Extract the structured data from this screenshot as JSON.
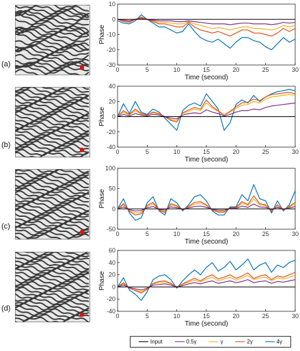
{
  "colors": {
    "input": "#000000",
    "g05": "#7e2f8e",
    "g1": "#edb120",
    "g2": "#d95319",
    "g4": "#0072bd",
    "pattern_dark": "#3a3a3a",
    "pattern_light": "#e8e8e8",
    "marker": "#e01010"
  },
  "panels": [
    {
      "label": "(a)"
    },
    {
      "label": "(b)"
    },
    {
      "label": "(c)"
    },
    {
      "label": "(d)"
    }
  ],
  "legend": {
    "items": [
      {
        "label": "Input",
        "series": "input"
      },
      {
        "label": "0.5γ",
        "series": "g05"
      },
      {
        "label": "γ",
        "series": "g1"
      },
      {
        "label": "2γ",
        "series": "g2"
      },
      {
        "label": "4γ",
        "series": "g4"
      }
    ]
  },
  "chart_data": [
    {
      "type": "line",
      "xlabel": "Time (second)",
      "ylabel": "Phase",
      "xlim": [
        0,
        30
      ],
      "ylim": [
        -30,
        10
      ],
      "xticks": [
        0,
        5,
        10,
        15,
        20,
        25,
        30
      ],
      "yticks": [
        -30,
        -20,
        -10,
        0,
        10
      ],
      "x": [
        0,
        1,
        2,
        3,
        4,
        5,
        6,
        7,
        8,
        9,
        10,
        11,
        12,
        13,
        14,
        15,
        16,
        17,
        18,
        19,
        20,
        21,
        22,
        23,
        24,
        25,
        26,
        27,
        28,
        29,
        30
      ],
      "series": [
        {
          "name": "Input",
          "key": "input",
          "values": [
            0,
            0,
            0,
            0,
            0,
            0,
            0,
            0,
            0,
            0,
            0,
            0,
            0,
            0,
            0,
            0,
            0,
            0,
            0,
            0,
            0,
            0,
            0,
            0,
            0,
            0,
            0,
            0,
            0,
            0,
            0
          ]
        },
        {
          "name": "0.5γ",
          "key": "g05",
          "values": [
            0,
            -0.5,
            -1,
            0,
            0.5,
            0,
            -0.5,
            -1,
            -1,
            -1,
            -1.5,
            -1.5,
            -1,
            -1.5,
            -2,
            -2.5,
            -3,
            -3,
            -3,
            -3.5,
            -3,
            -2.5,
            -2.5,
            -3,
            -3,
            -3,
            -3.5,
            -3,
            -2,
            -2.5,
            -2
          ]
        },
        {
          "name": "γ",
          "key": "g1",
          "values": [
            0,
            -1,
            -1.5,
            0,
            1,
            0,
            -1,
            -2,
            -2,
            -2.5,
            -3,
            -3,
            -1.5,
            -3,
            -4,
            -5,
            -6,
            -5.5,
            -6,
            -7,
            -6,
            -5,
            -5,
            -6,
            -6,
            -6.5,
            -7,
            -6,
            -4,
            -5,
            -4
          ]
        },
        {
          "name": "2γ",
          "key": "g2",
          "values": [
            0,
            -1.5,
            -2,
            0,
            1.5,
            0,
            -1.5,
            -3,
            -3,
            -4,
            -5,
            -5,
            -2,
            -5,
            -7,
            -8,
            -9,
            -8,
            -9.5,
            -11,
            -9,
            -7,
            -7,
            -9,
            -9,
            -10,
            -11,
            -9,
            -6,
            -8,
            -6
          ]
        },
        {
          "name": "4γ",
          "key": "g4",
          "values": [
            -1,
            -2.5,
            -3,
            -1,
            3,
            0,
            -2.5,
            -5,
            -5,
            -7,
            -9,
            -8,
            -3,
            -8,
            -12,
            -14,
            -15,
            -13,
            -16,
            -19,
            -15,
            -12,
            -12,
            -14,
            -15,
            -18,
            -20,
            -16,
            -12,
            -15,
            -13
          ]
        }
      ]
    },
    {
      "type": "line",
      "xlabel": "Time (second)",
      "ylabel": "Phase",
      "xlim": [
        0,
        30
      ],
      "ylim": [
        -40,
        40
      ],
      "xticks": [
        0,
        5,
        10,
        15,
        20,
        25,
        30
      ],
      "yticks": [
        -40,
        -20,
        0,
        20,
        40
      ],
      "x": [
        0,
        1,
        2,
        3,
        4,
        5,
        6,
        7,
        8,
        9,
        10,
        11,
        12,
        13,
        14,
        15,
        16,
        17,
        18,
        19,
        20,
        21,
        22,
        23,
        24,
        25,
        26,
        27,
        28,
        29,
        30
      ],
      "series": [
        {
          "name": "Input",
          "key": "input",
          "values": [
            0,
            0,
            0,
            0,
            0,
            0,
            0,
            0,
            0,
            0,
            0,
            0,
            0,
            0,
            0,
            0,
            0,
            0,
            0,
            0,
            0,
            0,
            0,
            0,
            0,
            0,
            0,
            0,
            0,
            0,
            0
          ]
        },
        {
          "name": "0.5γ",
          "key": "g05",
          "values": [
            0,
            3,
            1,
            4,
            2,
            1,
            3,
            2,
            0,
            -2,
            -3,
            2,
            4,
            5,
            4,
            9,
            6,
            4,
            1,
            3,
            6,
            8,
            8,
            10,
            9,
            12,
            14,
            15,
            16,
            17,
            18
          ]
        },
        {
          "name": "γ",
          "key": "g1",
          "values": [
            0,
            6,
            2,
            8,
            3,
            2,
            5,
            3,
            0,
            -4,
            -5,
            4,
            7,
            10,
            8,
            18,
            11,
            7,
            2,
            6,
            11,
            15,
            16,
            20,
            18,
            23,
            26,
            27,
            28,
            29,
            28
          ]
        },
        {
          "name": "2γ",
          "key": "g2",
          "values": [
            0,
            8,
            3,
            10,
            4,
            2,
            6,
            4,
            0,
            -5,
            -7,
            5,
            9,
            12,
            10,
            22,
            13,
            8,
            2,
            7,
            13,
            18,
            19,
            23,
            21,
            26,
            29,
            30,
            31,
            32,
            30
          ]
        },
        {
          "name": "4γ",
          "key": "g4",
          "values": [
            0,
            17,
            4,
            20,
            6,
            3,
            10,
            6,
            -2,
            -10,
            -18,
            8,
            15,
            18,
            14,
            30,
            20,
            10,
            -18,
            -8,
            16,
            22,
            18,
            28,
            20,
            26,
            30,
            33,
            34,
            36,
            34
          ]
        }
      ]
    },
    {
      "type": "line",
      "xlabel": "Time (second)",
      "ylabel": "Phase",
      "xlim": [
        0,
        30
      ],
      "ylim": [
        -50,
        100
      ],
      "xticks": [
        0,
        5,
        10,
        15,
        20,
        25,
        30
      ],
      "yticks": [
        -50,
        0,
        50,
        100
      ],
      "x": [
        0,
        1,
        2,
        3,
        4,
        5,
        6,
        7,
        8,
        9,
        10,
        11,
        12,
        13,
        14,
        15,
        16,
        17,
        18,
        19,
        20,
        21,
        22,
        23,
        24,
        25,
        26,
        27,
        28,
        29,
        30
      ],
      "series": [
        {
          "name": "Input",
          "key": "input",
          "values": [
            0,
            0,
            0,
            0,
            0,
            0,
            0,
            0,
            0,
            0,
            0,
            0,
            0,
            0,
            0,
            0,
            0,
            0,
            0,
            0,
            0,
            0,
            0,
            0,
            0,
            0,
            0,
            0,
            0,
            0,
            0
          ]
        },
        {
          "name": "0.5γ",
          "key": "g05",
          "values": [
            0,
            5,
            -2,
            -5,
            -4,
            3,
            6,
            -1,
            -3,
            5,
            3,
            -1,
            2,
            6,
            7,
            4,
            -1,
            -3,
            -3,
            1,
            1,
            7,
            4,
            12,
            5,
            4,
            -2,
            4,
            -1,
            2,
            6
          ]
        },
        {
          "name": "γ",
          "key": "g1",
          "values": [
            0,
            10,
            -4,
            -10,
            -8,
            6,
            12,
            -2,
            -6,
            10,
            6,
            -2,
            4,
            12,
            14,
            8,
            -2,
            -6,
            -6,
            2,
            2,
            14,
            8,
            24,
            10,
            8,
            -4,
            8,
            -2,
            4,
            12
          ]
        },
        {
          "name": "2γ",
          "key": "g2",
          "values": [
            0,
            13,
            -6,
            -15,
            -12,
            9,
            16,
            -3,
            -9,
            13,
            8,
            -3,
            6,
            16,
            18,
            10,
            -3,
            -8,
            -8,
            3,
            3,
            18,
            11,
            32,
            13,
            10,
            -6,
            10,
            -3,
            6,
            16
          ]
        },
        {
          "name": "4γ",
          "key": "g4",
          "values": [
            0,
            25,
            -10,
            -28,
            -22,
            15,
            30,
            -5,
            -15,
            25,
            15,
            -5,
            10,
            30,
            35,
            20,
            -5,
            -15,
            -15,
            5,
            5,
            35,
            20,
            60,
            25,
            20,
            -10,
            20,
            -5,
            10,
            45
          ]
        }
      ]
    },
    {
      "type": "line",
      "xlabel": "Time (second)",
      "ylabel": "Phase",
      "xlim": [
        0,
        30
      ],
      "ylim": [
        -40,
        60
      ],
      "xticks": [
        0,
        5,
        10,
        15,
        20,
        25,
        30
      ],
      "yticks": [
        -40,
        -20,
        0,
        20,
        40,
        60
      ],
      "x": [
        0,
        1,
        2,
        3,
        4,
        5,
        6,
        7,
        8,
        9,
        10,
        11,
        12,
        13,
        14,
        15,
        16,
        17,
        18,
        19,
        20,
        21,
        22,
        23,
        24,
        25,
        26,
        27,
        28,
        29,
        30
      ],
      "series": [
        {
          "name": "Input",
          "key": "input",
          "values": [
            0,
            0,
            0,
            0,
            0,
            0,
            0,
            0,
            0,
            0,
            0,
            0,
            0,
            0,
            0,
            0,
            0,
            0,
            0,
            0,
            0,
            0,
            0,
            0,
            0,
            0,
            0,
            0,
            0,
            0,
            0
          ]
        },
        {
          "name": "0.5γ",
          "key": "g05",
          "values": [
            0,
            3,
            -1,
            -3,
            -5,
            -2,
            3,
            4,
            5,
            3,
            0,
            2,
            5,
            7,
            5,
            8,
            10,
            6,
            8,
            10,
            7,
            9,
            12,
            7,
            9,
            10,
            6,
            9,
            8,
            10,
            12
          ]
        },
        {
          "name": "γ",
          "key": "g1",
          "values": [
            0,
            5,
            -2,
            -5,
            -8,
            -3,
            5,
            7,
            8,
            5,
            0,
            4,
            8,
            11,
            8,
            13,
            16,
            10,
            13,
            16,
            11,
            15,
            19,
            12,
            15,
            16,
            10,
            15,
            13,
            16,
            19
          ]
        },
        {
          "name": "2γ",
          "key": "g2",
          "values": [
            0,
            7,
            -2,
            -6,
            -10,
            -4,
            6,
            9,
            10,
            6,
            0,
            5,
            10,
            14,
            10,
            16,
            20,
            13,
            16,
            20,
            14,
            18,
            23,
            14,
            18,
            20,
            12,
            18,
            16,
            20,
            24
          ]
        },
        {
          "name": "4γ",
          "key": "g4",
          "values": [
            0,
            15,
            -5,
            -12,
            -22,
            -8,
            12,
            18,
            20,
            12,
            -2,
            10,
            20,
            28,
            20,
            32,
            40,
            26,
            32,
            42,
            28,
            36,
            46,
            28,
            36,
            40,
            24,
            36,
            32,
            40,
            44
          ]
        }
      ]
    }
  ]
}
